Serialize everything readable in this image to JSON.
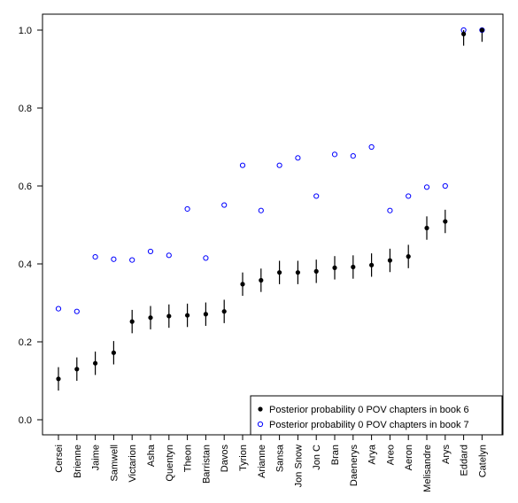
{
  "chart_data": {
    "type": "scatter",
    "categories": [
      "Cersei",
      "Brienne",
      "Jaime",
      "Samwell",
      "Victarion",
      "Asha",
      "Quentyn",
      "Theon",
      "Barristan",
      "Davos",
      "Tyrion",
      "Arianne",
      "Sansa",
      "Jon Snow",
      "Jon C",
      "Bran",
      "Daenerys",
      "Arya",
      "Areo",
      "Aeron",
      "Melisandre",
      "Arys",
      "Eddard",
      "Catelyn"
    ],
    "ylim": [
      0,
      1
    ],
    "yticks": [
      "0.0",
      "0.2",
      "0.4",
      "0.6",
      "0.8",
      "1.0"
    ],
    "grid": false,
    "legend_position": "bottom-right",
    "series": [
      {
        "name": "Posterior probability 0 POV chapters in book 6",
        "marker": "filled-circle",
        "color": "#000000",
        "values": [
          0.105,
          0.13,
          0.145,
          0.172,
          0.252,
          0.262,
          0.266,
          0.268,
          0.271,
          0.278,
          0.348,
          0.358,
          0.378,
          0.378,
          0.381,
          0.39,
          0.392,
          0.397,
          0.409,
          0.419,
          0.492,
          0.509,
          0.99,
          1.0
        ],
        "error_low": [
          0.075,
          0.1,
          0.115,
          0.142,
          0.222,
          0.232,
          0.236,
          0.238,
          0.241,
          0.248,
          0.318,
          0.328,
          0.348,
          0.348,
          0.351,
          0.36,
          0.362,
          0.367,
          0.379,
          0.389,
          0.462,
          0.479,
          0.96,
          0.97
        ],
        "error_high": [
          0.135,
          0.16,
          0.175,
          0.202,
          0.282,
          0.292,
          0.296,
          0.298,
          0.301,
          0.308,
          0.378,
          0.388,
          0.408,
          0.408,
          0.411,
          0.42,
          0.422,
          0.427,
          0.439,
          0.449,
          0.522,
          0.539,
          1.0,
          1.0
        ]
      },
      {
        "name": "Posterior probability 0 POV chapters in book 7",
        "marker": "open-circle",
        "color": "#0000ff",
        "values": [
          0.285,
          0.278,
          0.418,
          0.412,
          0.41,
          0.432,
          0.422,
          0.541,
          0.415,
          0.551,
          0.653,
          0.537,
          0.653,
          0.672,
          0.574,
          0.681,
          0.677,
          0.7,
          0.537,
          0.574,
          0.597,
          0.6,
          1.0,
          1.0
        ]
      }
    ]
  }
}
